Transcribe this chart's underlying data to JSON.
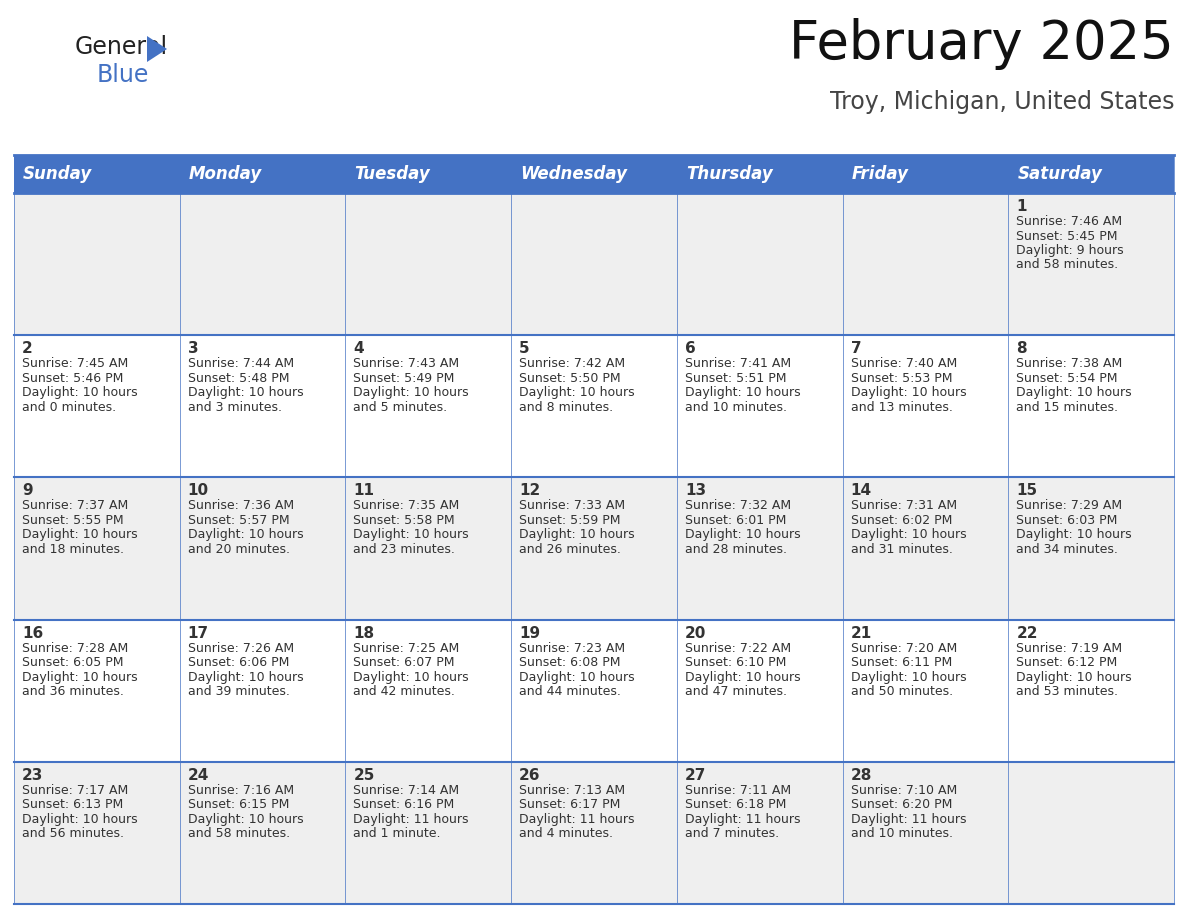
{
  "title": "February 2025",
  "subtitle": "Troy, Michigan, United States",
  "header_bg": "#4472C4",
  "header_text_color": "#FFFFFF",
  "day_names": [
    "Sunday",
    "Monday",
    "Tuesday",
    "Wednesday",
    "Thursday",
    "Friday",
    "Saturday"
  ],
  "row_bg_odd": "#EFEFEF",
  "row_bg_even": "#FFFFFF",
  "cell_text_color": "#333333",
  "day_num_color": "#333333",
  "border_color": "#4472C4",
  "days": [
    {
      "date": 1,
      "col": 6,
      "row": 0,
      "sunrise": "7:46 AM",
      "sunset": "5:45 PM",
      "daylight_l1": "9 hours",
      "daylight_l2": "and 58 minutes."
    },
    {
      "date": 2,
      "col": 0,
      "row": 1,
      "sunrise": "7:45 AM",
      "sunset": "5:46 PM",
      "daylight_l1": "10 hours",
      "daylight_l2": "and 0 minutes."
    },
    {
      "date": 3,
      "col": 1,
      "row": 1,
      "sunrise": "7:44 AM",
      "sunset": "5:48 PM",
      "daylight_l1": "10 hours",
      "daylight_l2": "and 3 minutes."
    },
    {
      "date": 4,
      "col": 2,
      "row": 1,
      "sunrise": "7:43 AM",
      "sunset": "5:49 PM",
      "daylight_l1": "10 hours",
      "daylight_l2": "and 5 minutes."
    },
    {
      "date": 5,
      "col": 3,
      "row": 1,
      "sunrise": "7:42 AM",
      "sunset": "5:50 PM",
      "daylight_l1": "10 hours",
      "daylight_l2": "and 8 minutes."
    },
    {
      "date": 6,
      "col": 4,
      "row": 1,
      "sunrise": "7:41 AM",
      "sunset": "5:51 PM",
      "daylight_l1": "10 hours",
      "daylight_l2": "and 10 minutes."
    },
    {
      "date": 7,
      "col": 5,
      "row": 1,
      "sunrise": "7:40 AM",
      "sunset": "5:53 PM",
      "daylight_l1": "10 hours",
      "daylight_l2": "and 13 minutes."
    },
    {
      "date": 8,
      "col": 6,
      "row": 1,
      "sunrise": "7:38 AM",
      "sunset": "5:54 PM",
      "daylight_l1": "10 hours",
      "daylight_l2": "and 15 minutes."
    },
    {
      "date": 9,
      "col": 0,
      "row": 2,
      "sunrise": "7:37 AM",
      "sunset": "5:55 PM",
      "daylight_l1": "10 hours",
      "daylight_l2": "and 18 minutes."
    },
    {
      "date": 10,
      "col": 1,
      "row": 2,
      "sunrise": "7:36 AM",
      "sunset": "5:57 PM",
      "daylight_l1": "10 hours",
      "daylight_l2": "and 20 minutes."
    },
    {
      "date": 11,
      "col": 2,
      "row": 2,
      "sunrise": "7:35 AM",
      "sunset": "5:58 PM",
      "daylight_l1": "10 hours",
      "daylight_l2": "and 23 minutes."
    },
    {
      "date": 12,
      "col": 3,
      "row": 2,
      "sunrise": "7:33 AM",
      "sunset": "5:59 PM",
      "daylight_l1": "10 hours",
      "daylight_l2": "and 26 minutes."
    },
    {
      "date": 13,
      "col": 4,
      "row": 2,
      "sunrise": "7:32 AM",
      "sunset": "6:01 PM",
      "daylight_l1": "10 hours",
      "daylight_l2": "and 28 minutes."
    },
    {
      "date": 14,
      "col": 5,
      "row": 2,
      "sunrise": "7:31 AM",
      "sunset": "6:02 PM",
      "daylight_l1": "10 hours",
      "daylight_l2": "and 31 minutes."
    },
    {
      "date": 15,
      "col": 6,
      "row": 2,
      "sunrise": "7:29 AM",
      "sunset": "6:03 PM",
      "daylight_l1": "10 hours",
      "daylight_l2": "and 34 minutes."
    },
    {
      "date": 16,
      "col": 0,
      "row": 3,
      "sunrise": "7:28 AM",
      "sunset": "6:05 PM",
      "daylight_l1": "10 hours",
      "daylight_l2": "and 36 minutes."
    },
    {
      "date": 17,
      "col": 1,
      "row": 3,
      "sunrise": "7:26 AM",
      "sunset": "6:06 PM",
      "daylight_l1": "10 hours",
      "daylight_l2": "and 39 minutes."
    },
    {
      "date": 18,
      "col": 2,
      "row": 3,
      "sunrise": "7:25 AM",
      "sunset": "6:07 PM",
      "daylight_l1": "10 hours",
      "daylight_l2": "and 42 minutes."
    },
    {
      "date": 19,
      "col": 3,
      "row": 3,
      "sunrise": "7:23 AM",
      "sunset": "6:08 PM",
      "daylight_l1": "10 hours",
      "daylight_l2": "and 44 minutes."
    },
    {
      "date": 20,
      "col": 4,
      "row": 3,
      "sunrise": "7:22 AM",
      "sunset": "6:10 PM",
      "daylight_l1": "10 hours",
      "daylight_l2": "and 47 minutes."
    },
    {
      "date": 21,
      "col": 5,
      "row": 3,
      "sunrise": "7:20 AM",
      "sunset": "6:11 PM",
      "daylight_l1": "10 hours",
      "daylight_l2": "and 50 minutes."
    },
    {
      "date": 22,
      "col": 6,
      "row": 3,
      "sunrise": "7:19 AM",
      "sunset": "6:12 PM",
      "daylight_l1": "10 hours",
      "daylight_l2": "and 53 minutes."
    },
    {
      "date": 23,
      "col": 0,
      "row": 4,
      "sunrise": "7:17 AM",
      "sunset": "6:13 PM",
      "daylight_l1": "10 hours",
      "daylight_l2": "and 56 minutes."
    },
    {
      "date": 24,
      "col": 1,
      "row": 4,
      "sunrise": "7:16 AM",
      "sunset": "6:15 PM",
      "daylight_l1": "10 hours",
      "daylight_l2": "and 58 minutes."
    },
    {
      "date": 25,
      "col": 2,
      "row": 4,
      "sunrise": "7:14 AM",
      "sunset": "6:16 PM",
      "daylight_l1": "11 hours",
      "daylight_l2": "and 1 minute."
    },
    {
      "date": 26,
      "col": 3,
      "row": 4,
      "sunrise": "7:13 AM",
      "sunset": "6:17 PM",
      "daylight_l1": "11 hours",
      "daylight_l2": "and 4 minutes."
    },
    {
      "date": 27,
      "col": 4,
      "row": 4,
      "sunrise": "7:11 AM",
      "sunset": "6:18 PM",
      "daylight_l1": "11 hours",
      "daylight_l2": "and 7 minutes."
    },
    {
      "date": 28,
      "col": 5,
      "row": 4,
      "sunrise": "7:10 AM",
      "sunset": "6:20 PM",
      "daylight_l1": "11 hours",
      "daylight_l2": "and 10 minutes."
    }
  ],
  "title_fontsize": 38,
  "subtitle_fontsize": 17,
  "header_fontsize": 12,
  "day_num_fontsize": 11,
  "cell_fontsize": 9
}
